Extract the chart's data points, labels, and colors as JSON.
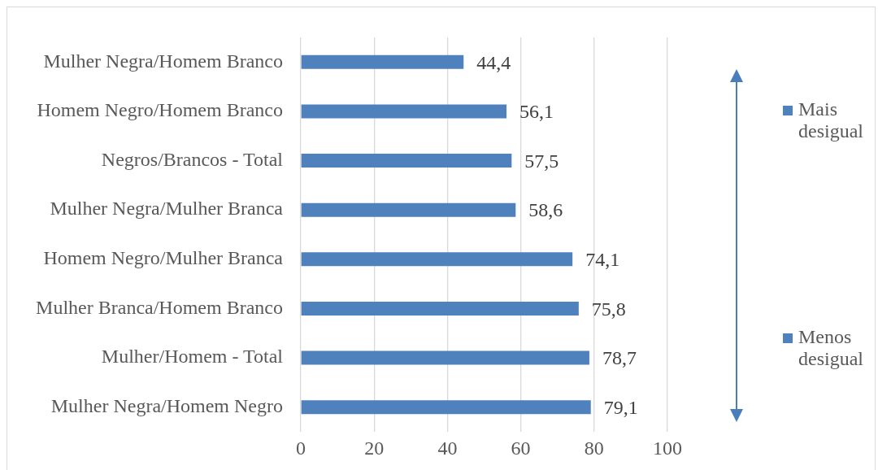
{
  "chart_data": {
    "type": "bar",
    "orientation": "horizontal",
    "categories": [
      "Mulher Negra/Homem Branco",
      "Homem Negro/Homem Branco",
      "Negros/Brancos - Total",
      "Mulher Negra/Mulher Branca",
      "Homem Negro/Mulher Branca",
      "Mulher Branca/Homem Branco",
      "Mulher/Homem - Total",
      "Mulher Negra/Homem Negro"
    ],
    "values": [
      44.4,
      56.1,
      57.5,
      58.6,
      74.1,
      75.8,
      78.7,
      79.1
    ],
    "value_labels": [
      "44,4",
      "56,1",
      "57,5",
      "58,6",
      "74,1",
      "75,8",
      "78,7",
      "79,1"
    ],
    "color": "#4f81bd",
    "xlim": [
      0,
      100
    ],
    "xticks": [
      0,
      20,
      40,
      60,
      80,
      100
    ],
    "grid": "x",
    "annotations": [
      "Mais desigual",
      "Menos desigual"
    ]
  }
}
